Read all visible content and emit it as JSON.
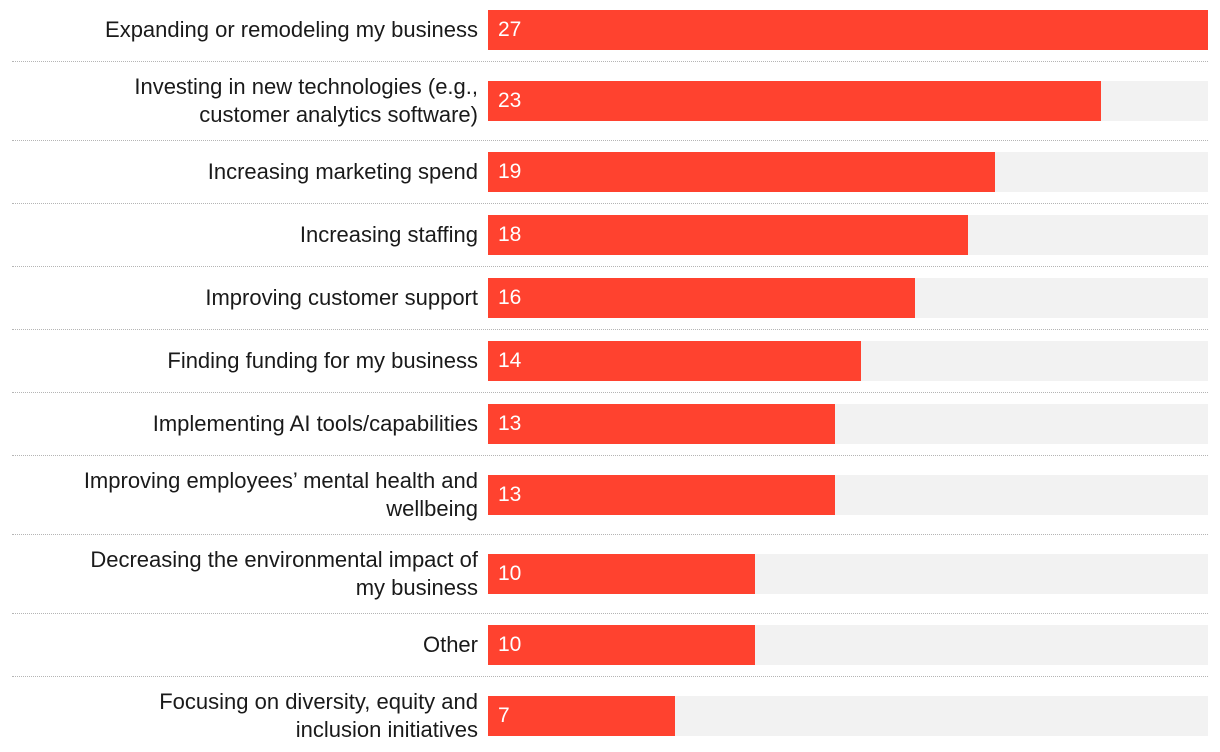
{
  "chart_data": {
    "type": "bar",
    "orientation": "horizontal",
    "title": "",
    "xlabel": "",
    "ylabel": "",
    "xlim": [
      0,
      27
    ],
    "grid": false,
    "colors": {
      "bar": "#ff422f",
      "track": "#f2f2f2",
      "label": "#1a1a1a",
      "value": "#ffffff"
    },
    "categories": [
      "Expanding or remodeling my business",
      "Investing in new technologies (e.g.,\ncustomer analytics software)",
      "Increasing marketing spend",
      "Increasing staffing",
      "Improving customer support",
      "Finding funding for my business",
      "Implementing AI tools/capabilities",
      "Improving employees’ mental health and\nwellbeing",
      "Decreasing the environmental impact of\nmy business",
      "Other",
      "Focusing on diversity, equity and\ninclusion initiatives"
    ],
    "values": [
      27,
      23,
      19,
      18,
      16,
      14,
      13,
      13,
      10,
      10,
      7
    ]
  }
}
